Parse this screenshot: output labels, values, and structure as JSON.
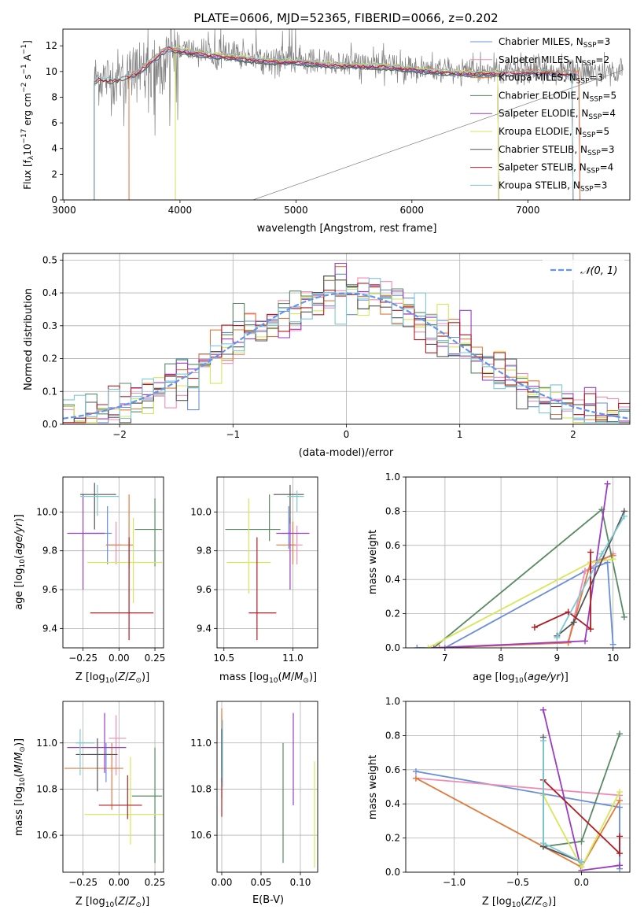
{
  "figure": {
    "title": "PLATE=0606, MJD=52365, FIBERID=0066, z=0.202"
  },
  "models": [
    {
      "name": "Chabrier MILES",
      "nssp": "3",
      "color": "#6a8fd8"
    },
    {
      "name": "Salpeter MILES",
      "nssp": "2",
      "color": "#f08cb4"
    },
    {
      "name": "Kroupa MILES",
      "nssp": "3",
      "color": "#e07a3c"
    },
    {
      "name": "Chabrier ELODIE",
      "nssp": "5",
      "color": "#5a8a64"
    },
    {
      "name": "Salpeter ELODIE",
      "nssp": "4",
      "color": "#9a3cc0"
    },
    {
      "name": "Kroupa ELODIE",
      "nssp": "5",
      "color": "#d8e65a"
    },
    {
      "name": "Chabrier STELIB",
      "nssp": "3",
      "color": "#555555"
    },
    {
      "name": "Salpeter STELIB",
      "nssp": "4",
      "color": "#b01e24"
    },
    {
      "name": "Kroupa STELIB",
      "nssp": "3",
      "color": "#7cc8d4"
    }
  ],
  "chart_data": [
    {
      "id": "spectrum",
      "type": "line",
      "xlabel": "wavelength [Angstrom, rest frame]",
      "ylabel": "Flux [f_λ10^-17 erg cm^-2 s^-1 A^-1]",
      "xlim": [
        2990,
        7880
      ],
      "ylim": [
        0,
        13.3
      ],
      "xticks": [
        3000,
        4000,
        5000,
        6000,
        7000
      ],
      "yticks": [
        0,
        2,
        4,
        6,
        8,
        10,
        12
      ],
      "legend_position": "top-right",
      "data_color": "#808080",
      "data_range": [
        3260,
        7820
      ],
      "model_continuum": {
        "x": [
          3260,
          3300,
          3400,
          3500,
          3600,
          3700,
          3800,
          3900,
          4000,
          4100,
          4300,
          4500,
          4800,
          5000,
          5200,
          5500,
          5800,
          6100,
          6400,
          6700,
          7000,
          7300,
          7450
        ],
        "y": [
          9.3,
          9.6,
          9.4,
          9.6,
          9.9,
          10.5,
          11.3,
          12.0,
          11.8,
          11.6,
          11.4,
          11.2,
          10.9,
          10.9,
          10.7,
          10.6,
          10.5,
          10.2,
          10.0,
          10.0,
          10.1,
          10.0,
          10.0
        ]
      },
      "model_start": [
        3560,
        3560,
        3560,
        3960,
        3960,
        3960,
        3260,
        3260,
        3260
      ],
      "model_end": [
        7450,
        7450,
        7450,
        6750,
        6750,
        6750,
        7390,
        7390,
        7390
      ]
    },
    {
      "id": "residuals",
      "type": "histogram",
      "xlabel": "(data-model)/error",
      "ylabel": "Normed distribution",
      "xlim": [
        -2.5,
        2.5
      ],
      "ylim": [
        0,
        0.52
      ],
      "xticks": [
        -2,
        -1,
        0,
        1,
        2
      ],
      "yticks": [
        0.0,
        0.1,
        0.2,
        0.3,
        0.4,
        0.5
      ],
      "reference_curve": "N(0,1)",
      "reference_color": "#6495ed",
      "grid": true,
      "bin_width": 0.1,
      "max_deviation": {
        "Salpeter ELODIE": 0.49,
        "Kroupa MILES": 0.48
      }
    },
    {
      "id": "age-vs-Z",
      "type": "scatter",
      "xlabel": "Z [log10(Z/Z⊙)]",
      "ylabel": "age [log10(age/yr)]",
      "xlim": [
        -0.39,
        0.31
      ],
      "ylim": [
        9.3,
        10.18
      ],
      "xticks": [
        -0.25,
        0.0,
        0.25
      ],
      "yticks": [
        9.4,
        9.6,
        9.8,
        10.0
      ],
      "grid": true,
      "points": [
        {
          "x": -0.08,
          "xerr": [
            0.16,
            0.03
          ],
          "y": 9.89,
          "yerr": [
            0.16,
            0.14
          ]
        },
        {
          "x": -0.02,
          "xerr": [
            0.07,
            0.04
          ],
          "y": 9.83,
          "yerr": [
            0.1,
            0.12
          ]
        },
        {
          "x": 0.07,
          "xerr": [
            0.16,
            0.03
          ],
          "y": 9.83,
          "yerr": [
            0.12,
            0.26
          ]
        },
        {
          "x": 0.25,
          "xerr": [
            0.14,
            0.05
          ],
          "y": 9.91,
          "yerr": [
            0.19,
            0.16
          ]
        },
        {
          "x": -0.25,
          "xerr": [
            0.11,
            0.15
          ],
          "y": 9.89,
          "yerr": [
            0.29,
            0.2
          ]
        },
        {
          "x": 0.1,
          "xerr": [
            0.32,
            0.2
          ],
          "y": 9.74,
          "yerr": [
            0.21,
            0.23
          ]
        },
        {
          "x": -0.17,
          "xerr": [
            0.1,
            0.15
          ],
          "y": 10.09,
          "yerr": [
            0.18,
            0.06
          ]
        },
        {
          "x": 0.07,
          "xerr": [
            0.27,
            0.17
          ],
          "y": 9.48,
          "yerr": [
            0.14,
            0.39
          ]
        },
        {
          "x": -0.15,
          "xerr": [
            0.12,
            0.15
          ],
          "y": 10.08,
          "yerr": [
            0.1,
            0.06
          ]
        }
      ]
    },
    {
      "id": "age-vs-mass",
      "type": "scatter",
      "xlabel": "mass [log10(M/M⊙)]",
      "ylabel": "",
      "xlim": [
        10.45,
        11.18
      ],
      "ylim": [
        9.3,
        10.18
      ],
      "xticks": [
        10.5,
        11.0
      ],
      "yticks": [
        9.4,
        9.6,
        9.8,
        10.0
      ],
      "grid": true,
      "points": [
        {
          "x": 10.97,
          "xerr": [
            0.05,
            0.02
          ],
          "y": 9.89,
          "yerr": [
            0.08,
            0.14
          ]
        },
        {
          "x": 11.03,
          "xerr": [
            0.05,
            0.04
          ],
          "y": 9.83,
          "yerr": [
            0.1,
            0.1
          ]
        },
        {
          "x": 11.0,
          "xerr": [
            0.12,
            0.02
          ],
          "y": 9.83,
          "yerr": [
            0.1,
            0.12
          ]
        },
        {
          "x": 10.83,
          "xerr": [
            0.32,
            0.08
          ],
          "y": 9.91,
          "yerr": [
            0.06,
            0.18
          ]
        },
        {
          "x": 10.98,
          "xerr": [
            0.1,
            0.14
          ],
          "y": 9.89,
          "yerr": [
            0.29,
            0.08
          ]
        },
        {
          "x": 10.68,
          "xerr": [
            0.16,
            0.16
          ],
          "y": 9.74,
          "yerr": [
            0.16,
            0.33
          ]
        },
        {
          "x": 10.98,
          "xerr": [
            0.12,
            0.1
          ],
          "y": 10.09,
          "yerr": [
            0.15,
            0.05
          ]
        },
        {
          "x": 10.74,
          "xerr": [
            0.06,
            0.14
          ],
          "y": 9.48,
          "yerr": [
            0.14,
            0.39
          ]
        },
        {
          "x": 11.03,
          "xerr": [
            0.07,
            0.05
          ],
          "y": 10.08,
          "yerr": [
            0.08,
            0.03
          ]
        }
      ]
    },
    {
      "id": "mass-weight-vs-age",
      "type": "line",
      "xlabel": "age [log10(age/yr)]",
      "ylabel": "mass weight",
      "xlim": [
        6.3,
        10.3
      ],
      "ylim": [
        0,
        1
      ],
      "xticks": [
        7,
        8,
        9,
        10
      ],
      "yticks": [
        0.0,
        0.2,
        0.4,
        0.6,
        0.8,
        1.0
      ],
      "grid": true,
      "series": [
        [
          [
            6.5,
            0.0
          ],
          [
            7.0,
            0.0
          ],
          [
            9.5,
            0.45
          ],
          [
            9.9,
            0.5
          ],
          [
            10.0,
            0.02
          ]
        ],
        [
          [
            6.8,
            0.0
          ],
          [
            9.2,
            0.03
          ],
          [
            9.5,
            0.45
          ],
          [
            10.0,
            0.55
          ]
        ],
        [
          [
            6.9,
            0.0
          ],
          [
            9.2,
            0.03
          ],
          [
            9.6,
            0.5
          ],
          [
            10.0,
            0.54
          ]
        ],
        [
          [
            6.8,
            0.0
          ],
          [
            9.8,
            0.81
          ],
          [
            10.2,
            0.18
          ]
        ],
        [
          [
            6.8,
            0.0
          ],
          [
            9.5,
            0.04
          ],
          [
            9.9,
            0.96
          ]
        ],
        [
          [
            6.7,
            0.0
          ],
          [
            9.6,
            0.5
          ],
          [
            10.0,
            0.52
          ]
        ],
        [
          [
            9.0,
            0.07
          ],
          [
            9.3,
            0.15
          ],
          [
            10.2,
            0.8
          ]
        ],
        [
          [
            8.6,
            0.12
          ],
          [
            9.2,
            0.21
          ],
          [
            9.6,
            0.11
          ],
          [
            9.6,
            0.56
          ]
        ],
        [
          [
            9.0,
            0.06
          ],
          [
            9.8,
            0.55
          ],
          [
            10.2,
            0.77
          ]
        ]
      ]
    },
    {
      "id": "mass-vs-Z",
      "type": "scatter",
      "xlabel": "Z [log10(Z/Z⊙)]",
      "ylabel": "mass [log10(M/M⊙)]",
      "xlim": [
        -0.39,
        0.31
      ],
      "ylim": [
        10.44,
        11.18
      ],
      "xticks": [
        -0.25,
        0.0,
        0.25
      ],
      "yticks": [
        10.6,
        10.8,
        11.0
      ],
      "grid": true,
      "points": [
        {
          "x": -0.09,
          "xerr": [
            0.12,
            0.04
          ],
          "y": 10.95,
          "yerr": [
            0.12,
            0.05
          ]
        },
        {
          "x": -0.02,
          "xerr": [
            0.05,
            0.07
          ],
          "y": 11.02,
          "yerr": [
            0.16,
            0.1
          ]
        },
        {
          "x": -0.05,
          "xerr": [
            0.33,
            0.08
          ],
          "y": 10.89,
          "yerr": [
            0.18,
            0.11
          ]
        },
        {
          "x": 0.25,
          "xerr": [
            0.16,
            0.05
          ],
          "y": 10.77,
          "yerr": [
            0.29,
            0.21
          ]
        },
        {
          "x": -0.1,
          "xerr": [
            0.26,
            0.15
          ],
          "y": 10.98,
          "yerr": [
            0.11,
            0.15
          ]
        },
        {
          "x": 0.08,
          "xerr": [
            0.32,
            0.23
          ],
          "y": 10.69,
          "yerr": [
            0.13,
            0.25
          ]
        },
        {
          "x": -0.15,
          "xerr": [
            0.15,
            0.14
          ],
          "y": 10.95,
          "yerr": [
            0.16,
            0.07
          ]
        },
        {
          "x": 0.06,
          "xerr": [
            0.2,
            0.1
          ],
          "y": 10.73,
          "yerr": [
            0.06,
            0.13
          ]
        },
        {
          "x": -0.27,
          "xerr": [
            0.03,
            0.1
          ],
          "y": 11.0,
          "yerr": [
            0.14,
            0.06
          ]
        }
      ]
    },
    {
      "id": "mass-vs-EBV",
      "type": "scatter",
      "xlabel": "E(B-V)",
      "ylabel": "",
      "xlim": [
        -0.006,
        0.122
      ],
      "ylim": [
        10.44,
        11.18
      ],
      "xticks": [
        0.0,
        0.05,
        0.1
      ],
      "yticks": [
        10.6,
        10.8,
        11.0
      ],
      "grid": true,
      "points": [
        {
          "x": 0.0,
          "y": 10.95,
          "yerr": [
            0.08,
            0.12
          ]
        },
        {
          "x": 0.0,
          "y": 11.02,
          "yerr": [
            0.14,
            0.1
          ]
        },
        {
          "x": 0.0,
          "y": 10.89,
          "yerr": [
            0.13,
            0.26
          ]
        },
        {
          "x": 0.078,
          "y": 10.77,
          "yerr": [
            0.29,
            0.23
          ]
        },
        {
          "x": 0.091,
          "y": 10.98,
          "yerr": [
            0.25,
            0.15
          ]
        },
        {
          "x": 0.118,
          "y": 10.73,
          "yerr": [
            0.27,
            0.19
          ]
        },
        {
          "x": 0.0,
          "y": 10.95,
          "yerr": [
            0.12,
            0.11
          ]
        },
        {
          "x": 0.0,
          "y": 10.73,
          "yerr": [
            0.05,
            0.12
          ]
        },
        {
          "x": 0.001,
          "y": 10.98,
          "yerr": [
            0.17,
            0.12
          ]
        }
      ]
    },
    {
      "id": "mass-weight-vs-Z",
      "type": "line",
      "xlabel": "Z [log10(Z/Z⊙)]",
      "ylabel": "mass weight",
      "xlim": [
        -1.38,
        0.38
      ],
      "ylim": [
        0,
        1
      ],
      "xticks": [
        -1.0,
        -0.5,
        0.0
      ],
      "yticks": [
        0.0,
        0.2,
        0.4,
        0.6,
        0.8,
        1.0
      ],
      "grid": true,
      "series": [
        [
          [
            -1.3,
            0.59
          ],
          [
            0.3,
            0.38
          ],
          [
            0.3,
            0.02
          ]
        ],
        [
          [
            -1.3,
            0.55
          ],
          [
            0.3,
            0.45
          ]
        ],
        [
          [
            -1.3,
            0.55
          ],
          [
            0.0,
            0.03
          ],
          [
            0.3,
            0.42
          ]
        ],
        [
          [
            -0.3,
            0.15
          ],
          [
            0.0,
            0.18
          ],
          [
            0.3,
            0.81
          ]
        ],
        [
          [
            -0.3,
            0.95
          ],
          [
            0.0,
            0.01
          ],
          [
            0.3,
            0.04
          ]
        ],
        [
          [
            -0.3,
            0.45
          ],
          [
            0.0,
            0.03
          ],
          [
            0.3,
            0.47
          ]
        ],
        [
          [
            -0.3,
            0.79
          ],
          [
            -0.3,
            0.15
          ],
          [
            0.0,
            0.06
          ]
        ],
        [
          [
            -0.3,
            0.54
          ],
          [
            0.3,
            0.11
          ],
          [
            0.3,
            0.21
          ]
        ],
        [
          [
            -0.3,
            0.77
          ],
          [
            -0.3,
            0.17
          ],
          [
            0.0,
            0.06
          ]
        ]
      ]
    }
  ]
}
